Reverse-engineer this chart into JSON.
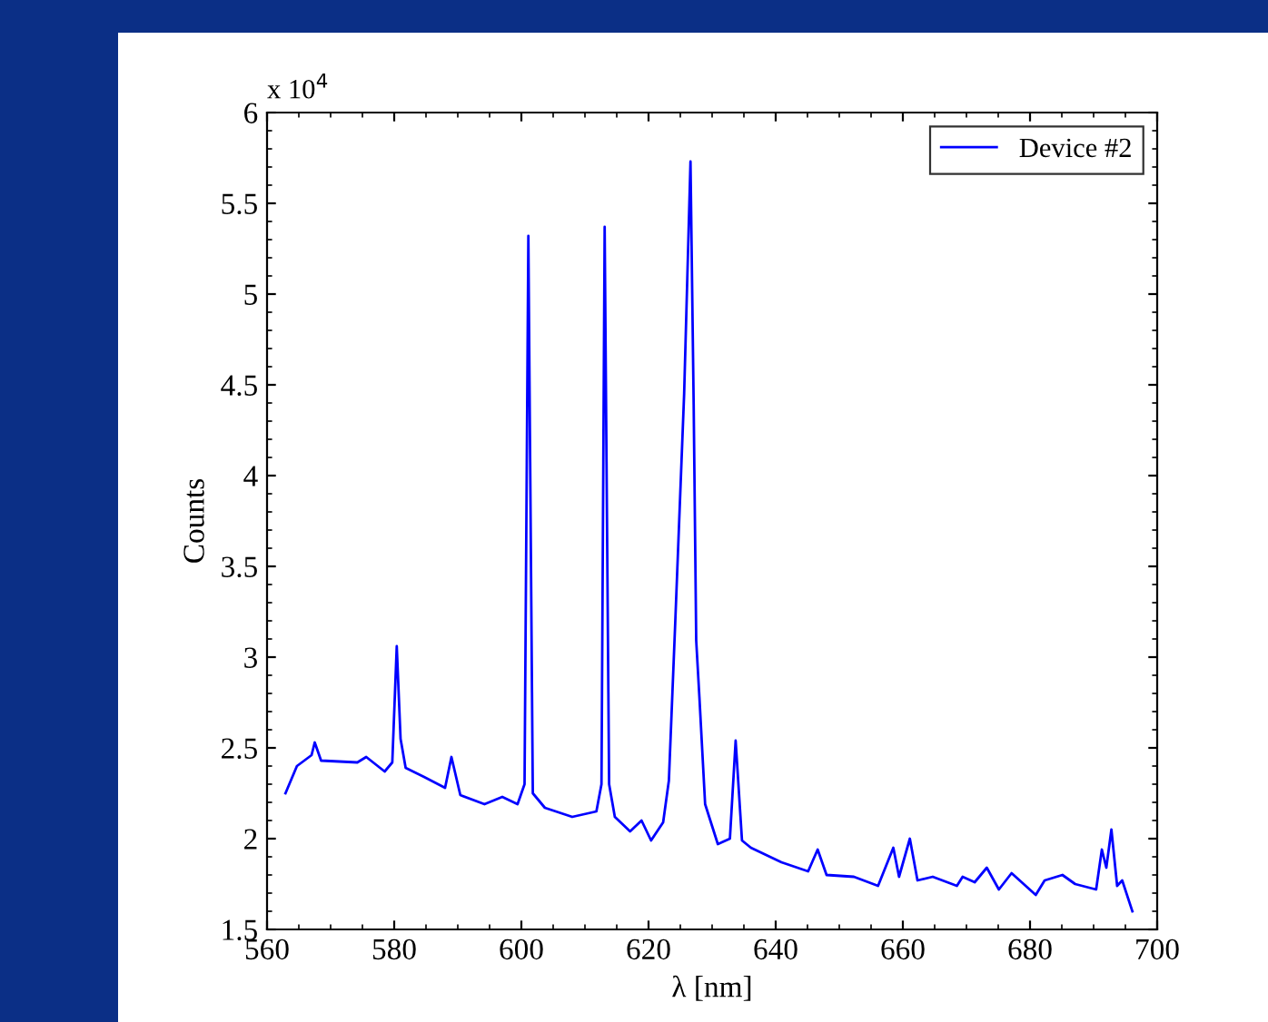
{
  "chart_data": {
    "type": "line",
    "xlabel": "λ [nm]",
    "ylabel": "Counts",
    "annotations": [
      "x 10$^{4}$"
    ],
    "xlim": [
      560,
      700
    ],
    "xticks": [
      560,
      580,
      600,
      620,
      640,
      660,
      680,
      700
    ],
    "ylim": [
      1.5,
      6
    ],
    "yticks": [
      1.5,
      2,
      2.5,
      3,
      3.5,
      4,
      4.5,
      5,
      5.5,
      6
    ],
    "grid": false,
    "legend": "top right",
    "marker": "none",
    "line_style": "solid",
    "series": [
      {
        "name": "Device #2",
        "color": "#0000ff",
        "x": [
          562.9,
          564.7,
          567.0,
          567.5,
          568.5,
          574.2,
          575.6,
          578.5,
          579.7,
          580.4,
          581.0,
          581.8,
          584.7,
          588.0,
          589.0,
          590.4,
          594.2,
          597.0,
          599.4,
          600.5,
          601.1,
          601.8,
          603.7,
          608.0,
          611.8,
          612.6,
          613.1,
          613.8,
          614.7,
          617.1,
          618.9,
          620.4,
          622.3,
          623.2,
          624.2,
          625.6,
          626.6,
          627.1,
          627.5,
          628.0,
          628.9,
          630.9,
          632.8,
          633.7,
          634.7,
          636.1,
          640.9,
          645.1,
          646.6,
          648.0,
          652.3,
          656.1,
          658.5,
          659.4,
          661.1,
          662.3,
          664.7,
          668.5,
          669.4,
          671.3,
          673.2,
          675.1,
          677.1,
          680.9,
          682.3,
          685.1,
          687.1,
          690.4,
          691.3,
          692.0,
          692.8,
          693.7,
          694.5,
          696.1
        ],
        "values": [
          2.25,
          2.4,
          2.46,
          2.53,
          2.43,
          2.42,
          2.45,
          2.37,
          2.42,
          3.06,
          2.55,
          2.39,
          2.34,
          2.28,
          2.45,
          2.24,
          2.19,
          2.23,
          2.19,
          2.3,
          5.32,
          2.25,
          2.17,
          2.12,
          2.15,
          2.3,
          5.37,
          2.3,
          2.12,
          2.04,
          2.1,
          1.99,
          2.09,
          2.32,
          3.19,
          4.45,
          5.73,
          4.39,
          3.09,
          2.78,
          2.19,
          1.97,
          2.0,
          2.54,
          1.99,
          1.95,
          1.87,
          1.82,
          1.94,
          1.8,
          1.79,
          1.74,
          1.95,
          1.79,
          2.0,
          1.77,
          1.79,
          1.74,
          1.79,
          1.76,
          1.84,
          1.72,
          1.81,
          1.69,
          1.77,
          1.8,
          1.75,
          1.72,
          1.94,
          1.84,
          2.05,
          1.74,
          1.77,
          1.6
        ]
      }
    ]
  }
}
